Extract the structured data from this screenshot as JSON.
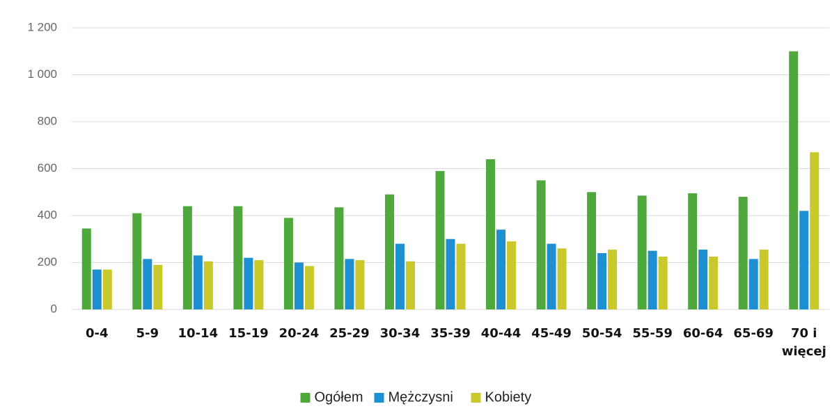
{
  "chart_data": {
    "type": "bar",
    "categories": [
      "0-4",
      "5-9",
      "10-14",
      "15-19",
      "20-24",
      "25-29",
      "30-34",
      "35-39",
      "40-44",
      "45-49",
      "50-54",
      "55-59",
      "60-64",
      "65-69",
      "70 i więcej"
    ],
    "series": [
      {
        "name": "Ogółem",
        "color": "#4ea83c",
        "values": [
          345,
          410,
          440,
          440,
          390,
          435,
          490,
          590,
          640,
          550,
          500,
          485,
          495,
          480,
          1100
        ]
      },
      {
        "name": "Mężczysni",
        "color": "#1e8fd0",
        "values": [
          170,
          215,
          230,
          220,
          200,
          215,
          280,
          300,
          340,
          280,
          240,
          250,
          255,
          215,
          420
        ]
      },
      {
        "name": "Kobiety",
        "color": "#c9c82c",
        "values": [
          170,
          190,
          205,
          210,
          185,
          210,
          205,
          280,
          290,
          260,
          255,
          225,
          225,
          255,
          670
        ]
      }
    ],
    "ylim": [
      0,
      1200
    ],
    "yticks": [
      0,
      200,
      400,
      600,
      800,
      {
        "value": 1000,
        "label": "1 000"
      },
      {
        "value": 1200,
        "label": "1 200"
      }
    ],
    "grid": true
  }
}
